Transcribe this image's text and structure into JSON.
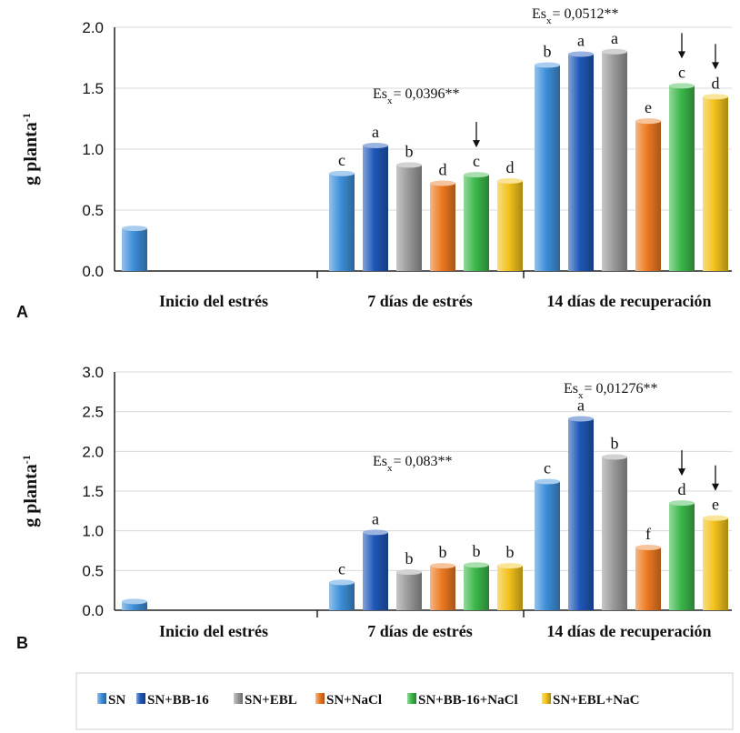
{
  "figure": {
    "legend": [
      {
        "label": "SN",
        "color": "#3d8fd9"
      },
      {
        "label": "SN+BB-16",
        "color": "#1f57b8"
      },
      {
        "label": "SN+EBL",
        "color": "#9a9a9a"
      },
      {
        "label": "SN+NaCl",
        "color": "#ee7a22"
      },
      {
        "label": "SN+BB-16+NaCl",
        "color": "#3cb84a"
      },
      {
        "label": "SN+EBL+NaC",
        "color": "#f2c21b"
      }
    ]
  },
  "chart_data": [
    {
      "type": "bar",
      "panel_label": "A",
      "ylabel": "g planta",
      "ylabel_sup": "-1",
      "ylim": [
        0,
        2.0
      ],
      "yticks": [
        "0.0",
        "0.5",
        "1.0",
        "1.5",
        "2.0"
      ],
      "categories": [
        "Inicio del estrés",
        "7 días de estrés",
        "14 días de recuperación"
      ],
      "series": [
        {
          "name": "SN",
          "values": [
            0.35,
            0.8,
            1.69
          ],
          "letters": [
            "",
            "c",
            "b"
          ]
        },
        {
          "name": "SN+BB-16",
          "values": [
            null,
            1.03,
            1.78
          ],
          "letters": [
            "",
            "a",
            "a"
          ]
        },
        {
          "name": "SN+EBL",
          "values": [
            null,
            0.87,
            1.8
          ],
          "letters": [
            "",
            "b",
            "a"
          ]
        },
        {
          "name": "SN+NaCl",
          "values": [
            null,
            0.72,
            1.23
          ],
          "letters": [
            "",
            "d",
            "e"
          ]
        },
        {
          "name": "SN+BB-16+NaCl",
          "values": [
            null,
            0.79,
            1.52
          ],
          "letters": [
            "",
            "c",
            "c"
          ]
        },
        {
          "name": "SN+EBL+NaC",
          "values": [
            null,
            0.74,
            1.43
          ],
          "letters": [
            "",
            "d",
            "d"
          ]
        }
      ],
      "annotations": [
        {
          "group": 1,
          "prefix": "Es",
          "sub": "x",
          "text": "= 0,0396**"
        },
        {
          "group": 2,
          "prefix": "Es",
          "sub": "x",
          "text": "= 0,0512**"
        }
      ],
      "arrows": [
        [
          1,
          4
        ],
        [
          2,
          4
        ],
        [
          2,
          5
        ]
      ]
    },
    {
      "type": "bar",
      "panel_label": "B",
      "ylabel": "g planta",
      "ylabel_sup": "-1",
      "ylim": [
        0,
        3.0
      ],
      "yticks": [
        "0.0",
        "0.5",
        "1.0",
        "1.5",
        "2.0",
        "2.5",
        "3.0"
      ],
      "categories": [
        "Inicio del estrés",
        "7 días de estrés",
        "14 días de recuperación"
      ],
      "series": [
        {
          "name": "SN",
          "values": [
            0.11,
            0.35,
            1.62
          ],
          "letters": [
            "",
            "c",
            "c"
          ]
        },
        {
          "name": "SN+BB-16",
          "values": [
            null,
            0.98,
            2.41
          ],
          "letters": [
            "",
            "a",
            "a"
          ]
        },
        {
          "name": "SN+EBL",
          "values": [
            null,
            0.48,
            1.93
          ],
          "letters": [
            "",
            "b",
            "b"
          ]
        },
        {
          "name": "SN+NaCl",
          "values": [
            null,
            0.56,
            0.79
          ],
          "letters": [
            "",
            "b",
            "f"
          ]
        },
        {
          "name": "SN+BB-16+NaCl",
          "values": [
            null,
            0.57,
            1.35
          ],
          "letters": [
            "",
            "b",
            "d"
          ]
        },
        {
          "name": "SN+EBL+NaC",
          "values": [
            null,
            0.56,
            1.16
          ],
          "letters": [
            "",
            "b",
            "e"
          ]
        }
      ],
      "annotations": [
        {
          "group": 1,
          "prefix": "Es",
          "sub": "x",
          "text": "= 0,083**"
        },
        {
          "group": 2,
          "prefix": "Es",
          "sub": "x",
          "text": "= 0,01276**"
        }
      ],
      "arrows": [
        [
          2,
          4
        ],
        [
          2,
          5
        ]
      ]
    }
  ]
}
